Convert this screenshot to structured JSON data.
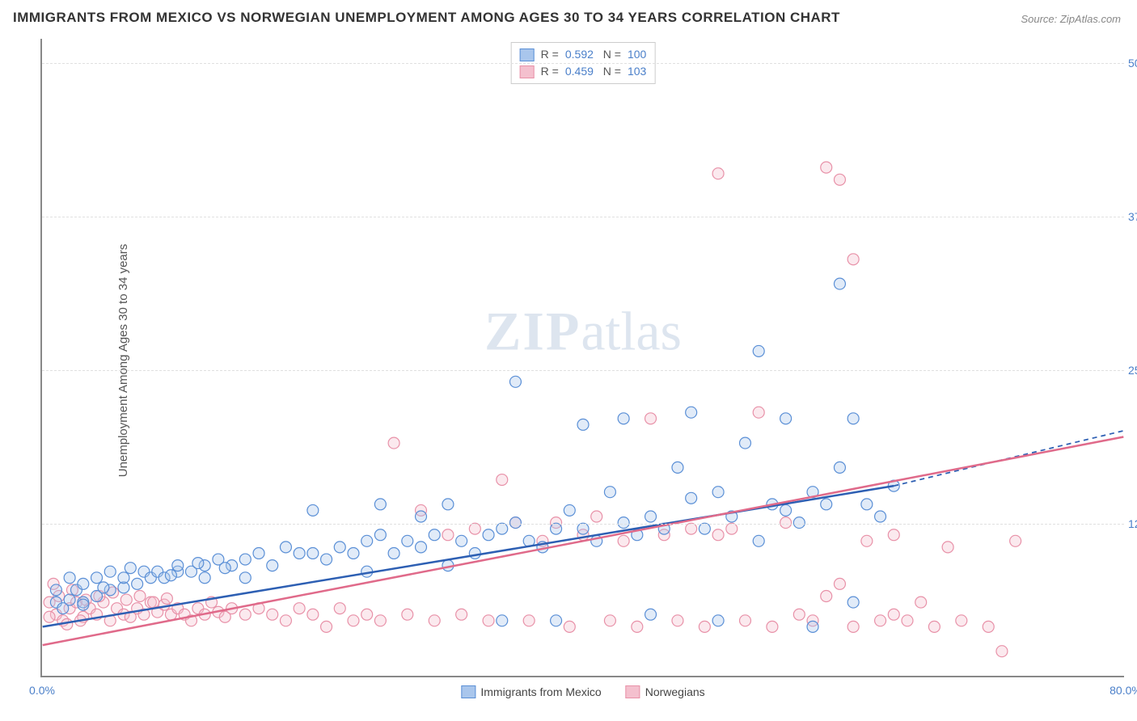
{
  "title": "IMMIGRANTS FROM MEXICO VS NORWEGIAN UNEMPLOYMENT AMONG AGES 30 TO 34 YEARS CORRELATION CHART",
  "source": "Source: ZipAtlas.com",
  "ylabel": "Unemployment Among Ages 30 to 34 years",
  "watermark_a": "ZIP",
  "watermark_b": "atlas",
  "chart": {
    "type": "scatter-with-regression",
    "xlim": [
      0,
      80
    ],
    "ylim": [
      0,
      52
    ],
    "yticks": [
      {
        "v": 12.5,
        "label": "12.5%"
      },
      {
        "v": 25.0,
        "label": "25.0%"
      },
      {
        "v": 37.5,
        "label": "37.5%"
      },
      {
        "v": 50.0,
        "label": "50.0%"
      }
    ],
    "xticks": [
      {
        "v": 0,
        "label": "0.0%"
      },
      {
        "v": 80,
        "label": "80.0%"
      }
    ],
    "grid_color": "#e0e0e0",
    "background_color": "#ffffff",
    "axis_color": "#888888",
    "marker_radius": 7,
    "marker_stroke_width": 1.2,
    "marker_fill_opacity": 0.35,
    "line_width": 2.5,
    "series": [
      {
        "name": "Immigrants from Mexico",
        "color_fill": "#a9c6ec",
        "color_stroke": "#5a8fd6",
        "line_color": "#2d5fb3",
        "R": "0.592",
        "N": "100",
        "regression": {
          "x1": 0,
          "y1": 4.0,
          "x2": 63,
          "y2": 15.5,
          "x2_dash": 80,
          "y2_dash": 20.0
        },
        "points": [
          [
            1,
            6
          ],
          [
            1.5,
            5.5
          ],
          [
            2,
            6.2
          ],
          [
            2.5,
            7
          ],
          [
            3,
            6
          ],
          [
            3,
            7.5
          ],
          [
            4,
            6.5
          ],
          [
            4,
            8
          ],
          [
            5,
            7
          ],
          [
            5,
            8.5
          ],
          [
            6,
            7.2
          ],
          [
            6,
            8
          ],
          [
            7,
            7.5
          ],
          [
            7.5,
            8.5
          ],
          [
            8,
            8
          ],
          [
            8.5,
            8.5
          ],
          [
            9,
            8
          ],
          [
            10,
            8.5
          ],
          [
            10,
            9
          ],
          [
            11,
            8.5
          ],
          [
            12,
            9
          ],
          [
            12,
            8
          ],
          [
            13,
            9.5
          ],
          [
            14,
            9
          ],
          [
            15,
            9.5
          ],
          [
            15,
            8
          ],
          [
            16,
            10
          ],
          [
            17,
            9
          ],
          [
            18,
            10.5
          ],
          [
            19,
            10
          ],
          [
            20,
            10
          ],
          [
            20,
            13.5
          ],
          [
            21,
            9.5
          ],
          [
            22,
            10.5
          ],
          [
            23,
            10
          ],
          [
            24,
            11
          ],
          [
            24,
            8.5
          ],
          [
            25,
            11.5
          ],
          [
            25,
            14
          ],
          [
            26,
            10
          ],
          [
            27,
            11
          ],
          [
            28,
            10.5
          ],
          [
            28,
            13
          ],
          [
            29,
            11.5
          ],
          [
            30,
            9
          ],
          [
            30,
            14
          ],
          [
            31,
            11
          ],
          [
            32,
            10
          ],
          [
            33,
            11.5
          ],
          [
            34,
            12
          ],
          [
            34,
            4.5
          ],
          [
            35,
            12.5
          ],
          [
            35,
            24
          ],
          [
            36,
            11
          ],
          [
            37,
            10.5
          ],
          [
            38,
            12
          ],
          [
            38,
            4.5
          ],
          [
            39,
            13.5
          ],
          [
            40,
            12
          ],
          [
            40,
            20.5
          ],
          [
            41,
            11
          ],
          [
            42,
            15
          ],
          [
            43,
            12.5
          ],
          [
            43,
            21
          ],
          [
            44,
            11.5
          ],
          [
            45,
            13
          ],
          [
            45,
            5
          ],
          [
            46,
            12
          ],
          [
            47,
            17
          ],
          [
            48,
            14.5
          ],
          [
            48,
            21.5
          ],
          [
            49,
            12
          ],
          [
            50,
            15
          ],
          [
            50,
            4.5
          ],
          [
            51,
            13
          ],
          [
            52,
            19
          ],
          [
            53,
            11
          ],
          [
            53,
            26.5
          ],
          [
            54,
            14
          ],
          [
            55,
            13.5
          ],
          [
            55,
            21
          ],
          [
            56,
            12.5
          ],
          [
            57,
            15
          ],
          [
            57,
            4
          ],
          [
            58,
            14
          ],
          [
            59,
            17
          ],
          [
            59,
            32
          ],
          [
            60,
            6
          ],
          [
            60,
            21
          ],
          [
            61,
            14
          ],
          [
            62,
            13
          ],
          [
            63,
            15.5
          ],
          [
            1,
            7
          ],
          [
            2,
            8
          ],
          [
            3,
            5.8
          ],
          [
            4.5,
            7.2
          ],
          [
            6.5,
            8.8
          ],
          [
            9.5,
            8.2
          ],
          [
            11.5,
            9.2
          ],
          [
            13.5,
            8.8
          ]
        ]
      },
      {
        "name": "Norwegians",
        "color_fill": "#f4c0ce",
        "color_stroke": "#e891a8",
        "line_color": "#e06a8a",
        "R": "0.459",
        "N": "103",
        "regression": {
          "x1": 0,
          "y1": 2.5,
          "x2": 80,
          "y2": 19.5,
          "x2_dash": 80,
          "y2_dash": 19.5
        },
        "points": [
          [
            0.5,
            6
          ],
          [
            1,
            5
          ],
          [
            1.5,
            4.5
          ],
          [
            2,
            5.5
          ],
          [
            2.5,
            6
          ],
          [
            3,
            4.8
          ],
          [
            3.5,
            5.5
          ],
          [
            4,
            5
          ],
          [
            4.5,
            6
          ],
          [
            5,
            4.5
          ],
          [
            5.5,
            5.5
          ],
          [
            6,
            5
          ],
          [
            6.5,
            4.8
          ],
          [
            7,
            5.5
          ],
          [
            7.5,
            5
          ],
          [
            8,
            6
          ],
          [
            8.5,
            5.2
          ],
          [
            9,
            5.8
          ],
          [
            9.5,
            5
          ],
          [
            10,
            5.5
          ],
          [
            10.5,
            5
          ],
          [
            11,
            4.5
          ],
          [
            11.5,
            5.5
          ],
          [
            12,
            5
          ],
          [
            12.5,
            6
          ],
          [
            13,
            5.2
          ],
          [
            13.5,
            4.8
          ],
          [
            14,
            5.5
          ],
          [
            15,
            5
          ],
          [
            16,
            5.5
          ],
          [
            17,
            5
          ],
          [
            18,
            4.5
          ],
          [
            19,
            5.5
          ],
          [
            20,
            5
          ],
          [
            21,
            4
          ],
          [
            22,
            5.5
          ],
          [
            23,
            4.5
          ],
          [
            24,
            5
          ],
          [
            25,
            4.5
          ],
          [
            26,
            19
          ],
          [
            27,
            5
          ],
          [
            28,
            13.5
          ],
          [
            29,
            4.5
          ],
          [
            30,
            11.5
          ],
          [
            31,
            5
          ],
          [
            32,
            12
          ],
          [
            33,
            4.5
          ],
          [
            34,
            16
          ],
          [
            35,
            12.5
          ],
          [
            36,
            4.5
          ],
          [
            37,
            11
          ],
          [
            38,
            12.5
          ],
          [
            39,
            4
          ],
          [
            40,
            11.5
          ],
          [
            41,
            13
          ],
          [
            42,
            4.5
          ],
          [
            43,
            11
          ],
          [
            44,
            4
          ],
          [
            45,
            21
          ],
          [
            46,
            11.5
          ],
          [
            47,
            4.5
          ],
          [
            48,
            12
          ],
          [
            49,
            4
          ],
          [
            50,
            11.5
          ],
          [
            50,
            41
          ],
          [
            51,
            12
          ],
          [
            52,
            4.5
          ],
          [
            53,
            21.5
          ],
          [
            54,
            4
          ],
          [
            55,
            12.5
          ],
          [
            56,
            5
          ],
          [
            57,
            4.5
          ],
          [
            58,
            6.5
          ],
          [
            58,
            41.5
          ],
          [
            59,
            7.5
          ],
          [
            59,
            40.5
          ],
          [
            60,
            4
          ],
          [
            60,
            34
          ],
          [
            61,
            11
          ],
          [
            62,
            4.5
          ],
          [
            63,
            5
          ],
          [
            63,
            11.5
          ],
          [
            64,
            4.5
          ],
          [
            65,
            6
          ],
          [
            66,
            4
          ],
          [
            67,
            10.5
          ],
          [
            68,
            4.5
          ],
          [
            70,
            4
          ],
          [
            72,
            11
          ],
          [
            71,
            2
          ],
          [
            0.8,
            7.5
          ],
          [
            1.2,
            6.5
          ],
          [
            2.2,
            7
          ],
          [
            3.2,
            6.2
          ],
          [
            4.2,
            6.5
          ],
          [
            5.2,
            6.8
          ],
          [
            6.2,
            6.2
          ],
          [
            7.2,
            6.5
          ],
          [
            8.2,
            6
          ],
          [
            9.2,
            6.3
          ],
          [
            0.5,
            4.8
          ],
          [
            1.8,
            4.2
          ],
          [
            2.8,
            4.5
          ]
        ]
      }
    ]
  },
  "legend_bottom": [
    {
      "label": "Immigrants from Mexico",
      "fill": "#a9c6ec",
      "stroke": "#5a8fd6"
    },
    {
      "label": "Norwegians",
      "fill": "#f4c0ce",
      "stroke": "#e891a8"
    }
  ]
}
